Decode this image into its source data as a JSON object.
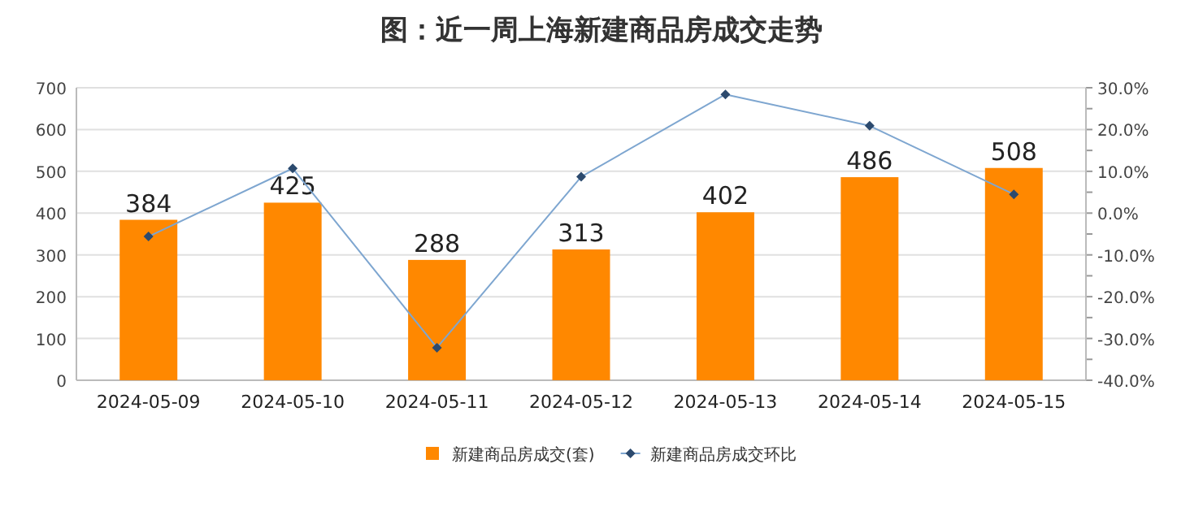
{
  "chart_data": {
    "type": "bar",
    "title": "图：近一周上海新建商品房成交走势",
    "categories": [
      "2024-05-09",
      "2024-05-10",
      "2024-05-11",
      "2024-05-12",
      "2024-05-13",
      "2024-05-14",
      "2024-05-15"
    ],
    "series": [
      {
        "name": "新建商品房成交(套)",
        "color": "#ff8800",
        "values": [
          384,
          425,
          288,
          313,
          402,
          486,
          508
        ],
        "data_labels": true
      },
      {
        "name": "新建商品房成交环比",
        "type": "line",
        "axis": "y2",
        "color": "#7ea6d0",
        "marker": "diamond",
        "values": [
          -5.6,
          10.7,
          -32.2,
          8.7,
          28.4,
          20.9,
          4.5
        ]
      }
    ],
    "ylim": [
      0,
      700
    ],
    "yticks": [
      0,
      100,
      200,
      300,
      400,
      500,
      600,
      700
    ],
    "y2lim": [
      -40,
      30
    ],
    "y2ticks": [
      {
        "value": -40,
        "label": "-40.0%"
      },
      {
        "value": -35,
        "label": null
      },
      {
        "value": -30,
        "label": "-30.0%"
      },
      {
        "value": -25,
        "label": null
      },
      {
        "value": -20,
        "label": "-20.0%"
      },
      {
        "value": -15,
        "label": null
      },
      {
        "value": -10,
        "label": "-10.0%"
      },
      {
        "value": -5,
        "label": null
      },
      {
        "value": 0,
        "label": "0.0%"
      },
      {
        "value": 5,
        "label": null
      },
      {
        "value": 10,
        "label": "10.0%"
      },
      {
        "value": 15,
        "label": null
      },
      {
        "value": 20,
        "label": "20.0%"
      },
      {
        "value": 25,
        "label": null
      },
      {
        "value": 30,
        "label": "30.0%"
      }
    ],
    "grid": "y",
    "legend": "bottom"
  }
}
